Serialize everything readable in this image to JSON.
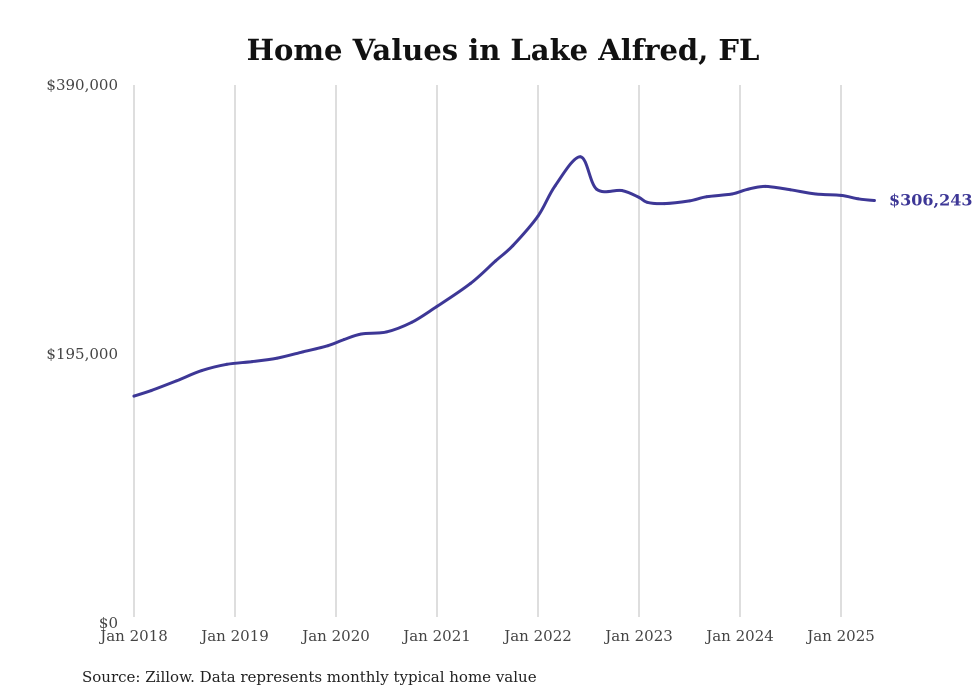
{
  "chart_data": {
    "type": "line",
    "title": "Home Values in Lake Alfred, FL",
    "xlabel": "",
    "ylabel": "",
    "ylim": [
      0,
      390000
    ],
    "yticks": [
      {
        "value": 0,
        "label": "$0"
      },
      {
        "value": 195000,
        "label": "$195,000"
      },
      {
        "value": 390000,
        "label": "$390,000"
      }
    ],
    "xticks": [
      {
        "value": 2018.0,
        "label": "Jan 2018"
      },
      {
        "value": 2019.0,
        "label": "Jan 2019"
      },
      {
        "value": 2020.0,
        "label": "Jan 2020"
      },
      {
        "value": 2021.0,
        "label": "Jan 2021"
      },
      {
        "value": 2022.0,
        "label": "Jan 2022"
      },
      {
        "value": 2023.0,
        "label": "Jan 2023"
      },
      {
        "value": 2024.0,
        "label": "Jan 2024"
      },
      {
        "value": 2025.0,
        "label": "Jan 2025"
      }
    ],
    "xlim": [
      2018.0,
      2025.35
    ],
    "grid": {
      "vertical": true,
      "horizontal": false
    },
    "series": [
      {
        "color": "#3d3796",
        "end_label": "$306,243",
        "points": [
          [
            2018.0,
            164500
          ],
          [
            2018.17,
            168500
          ],
          [
            2018.42,
            175500
          ],
          [
            2018.67,
            183000
          ],
          [
            2018.92,
            187500
          ],
          [
            2019.17,
            189500
          ],
          [
            2019.42,
            192000
          ],
          [
            2019.67,
            196500
          ],
          [
            2019.92,
            201000
          ],
          [
            2020.08,
            205500
          ],
          [
            2020.25,
            209500
          ],
          [
            2020.5,
            211000
          ],
          [
            2020.75,
            218000
          ],
          [
            2021.0,
            229500
          ],
          [
            2021.33,
            246000
          ],
          [
            2021.58,
            262500
          ],
          [
            2021.75,
            273500
          ],
          [
            2022.0,
            295000
          ],
          [
            2022.17,
            317000
          ],
          [
            2022.42,
            338000
          ],
          [
            2022.58,
            314500
          ],
          [
            2022.83,
            313500
          ],
          [
            2023.0,
            308500
          ],
          [
            2023.08,
            305000
          ],
          [
            2023.25,
            304000
          ],
          [
            2023.5,
            306000
          ],
          [
            2023.67,
            309000
          ],
          [
            2023.92,
            311000
          ],
          [
            2024.08,
            314500
          ],
          [
            2024.25,
            316500
          ],
          [
            2024.5,
            314000
          ],
          [
            2024.75,
            311000
          ],
          [
            2025.0,
            310000
          ],
          [
            2025.17,
            307500
          ],
          [
            2025.33,
            306243
          ]
        ]
      }
    ]
  },
  "source_note": "Source: Zillow. Data represents monthly typical home value"
}
